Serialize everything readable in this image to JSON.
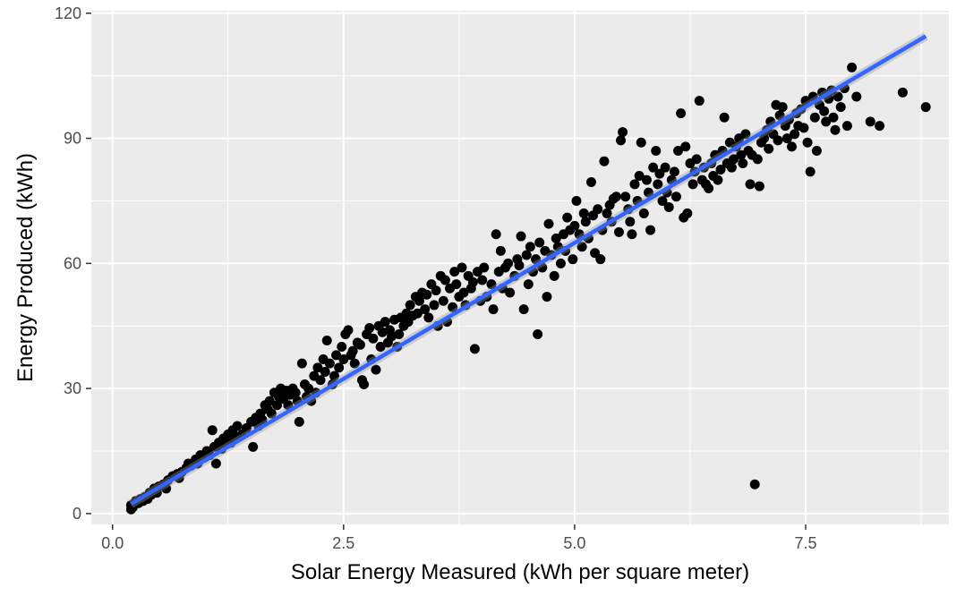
{
  "chart_data": {
    "type": "scatter",
    "title": "",
    "xlabel": "Solar Energy Measured (kWh per square meter)",
    "ylabel": "Energy Produced (kWh)",
    "xlim": [
      -0.23,
      9.05
    ],
    "ylim": [
      -2.6,
      120.6
    ],
    "x_ticks": [
      0.0,
      2.5,
      5.0,
      7.5
    ],
    "x_tick_labels": [
      "0.0",
      "2.5",
      "5.0",
      "7.5"
    ],
    "y_ticks": [
      0,
      30,
      60,
      90,
      120
    ],
    "y_tick_labels": [
      "0",
      "30",
      "60",
      "90",
      "120"
    ],
    "grid": true,
    "legend": "none",
    "colors": {
      "panel": "#ebebeb",
      "grid": "#ffffff",
      "point": "#000000",
      "fit_line": "#3366ff",
      "fit_band": "#999999"
    },
    "fit_line": {
      "x": [
        0.2,
        8.8
      ],
      "y": [
        2.3,
        114.5
      ]
    },
    "points": [
      [
        0.2,
        1.0
      ],
      [
        0.2,
        2.0
      ],
      [
        0.22,
        1.5
      ],
      [
        0.25,
        3.0
      ],
      [
        0.28,
        2.5
      ],
      [
        0.3,
        3.5
      ],
      [
        0.33,
        3.0
      ],
      [
        0.35,
        4.0
      ],
      [
        0.38,
        3.5
      ],
      [
        0.4,
        5.0
      ],
      [
        0.42,
        4.5
      ],
      [
        0.45,
        6.0
      ],
      [
        0.48,
        5.0
      ],
      [
        0.5,
        6.5
      ],
      [
        0.55,
        7.0
      ],
      [
        0.58,
        6.0
      ],
      [
        0.6,
        8.0
      ],
      [
        0.65,
        9.0
      ],
      [
        0.7,
        9.5
      ],
      [
        0.72,
        8.5
      ],
      [
        0.75,
        10.0
      ],
      [
        0.8,
        11.0
      ],
      [
        0.82,
        12.0
      ],
      [
        0.85,
        11.5
      ],
      [
        0.9,
        13.0
      ],
      [
        0.92,
        12.0
      ],
      [
        0.95,
        14.0
      ],
      [
        1.0,
        13.5
      ],
      [
        1.02,
        15.0
      ],
      [
        1.05,
        14.0
      ],
      [
        1.08,
        20.0
      ],
      [
        1.1,
        16.0
      ],
      [
        1.12,
        12.0
      ],
      [
        1.15,
        17.0
      ],
      [
        1.18,
        15.5
      ],
      [
        1.2,
        18.0
      ],
      [
        1.22,
        16.5
      ],
      [
        1.25,
        19.0
      ],
      [
        1.28,
        17.0
      ],
      [
        1.3,
        20.0
      ],
      [
        1.32,
        18.5
      ],
      [
        1.35,
        21.0
      ],
      [
        1.4,
        19.0
      ],
      [
        1.45,
        20.5
      ],
      [
        1.5,
        22.0
      ],
      [
        1.52,
        16.0
      ],
      [
        1.55,
        23.0
      ],
      [
        1.58,
        21.0
      ],
      [
        1.6,
        24.0
      ],
      [
        1.62,
        22.5
      ],
      [
        1.65,
        26.0
      ],
      [
        1.68,
        25.0
      ],
      [
        1.7,
        27.0
      ],
      [
        1.72,
        24.0
      ],
      [
        1.75,
        29.0
      ],
      [
        1.78,
        26.0
      ],
      [
        1.8,
        28.0
      ],
      [
        1.82,
        30.0
      ],
      [
        1.85,
        27.5
      ],
      [
        1.88,
        29.5
      ],
      [
        1.9,
        26.0
      ],
      [
        1.92,
        28.5
      ],
      [
        1.95,
        30.0
      ],
      [
        1.98,
        29.0
      ],
      [
        2.0,
        27.0
      ],
      [
        2.02,
        22.0
      ],
      [
        2.05,
        36.0
      ],
      [
        2.08,
        31.0
      ],
      [
        2.1,
        28.0
      ],
      [
        2.12,
        30.0
      ],
      [
        2.15,
        27.0
      ],
      [
        2.18,
        33.0
      ],
      [
        2.2,
        29.0
      ],
      [
        2.22,
        35.0
      ],
      [
        2.25,
        32.0
      ],
      [
        2.28,
        37.0
      ],
      [
        2.3,
        34.0
      ],
      [
        2.32,
        41.5
      ],
      [
        2.35,
        36.0
      ],
      [
        2.38,
        31.0
      ],
      [
        2.4,
        33.0
      ],
      [
        2.42,
        38.0
      ],
      [
        2.45,
        35.0
      ],
      [
        2.48,
        40.0
      ],
      [
        2.5,
        37.0
      ],
      [
        2.52,
        43.0
      ],
      [
        2.55,
        44.0
      ],
      [
        2.58,
        38.0
      ],
      [
        2.6,
        39.0
      ],
      [
        2.62,
        36.0
      ],
      [
        2.65,
        41.0
      ],
      [
        2.68,
        40.5
      ],
      [
        2.7,
        32.0
      ],
      [
        2.72,
        31.0
      ],
      [
        2.75,
        43.0
      ],
      [
        2.78,
        44.5
      ],
      [
        2.8,
        37.0
      ],
      [
        2.82,
        42.0
      ],
      [
        2.85,
        34.5
      ],
      [
        2.88,
        45.0
      ],
      [
        2.9,
        40.0
      ],
      [
        2.92,
        43.5
      ],
      [
        2.95,
        46.0
      ],
      [
        2.98,
        41.0
      ],
      [
        3.0,
        44.0
      ],
      [
        3.02,
        42.5
      ],
      [
        3.05,
        46.5
      ],
      [
        3.08,
        40.0
      ],
      [
        3.1,
        43.0
      ],
      [
        3.12,
        47.0
      ],
      [
        3.15,
        45.0
      ],
      [
        3.18,
        48.0
      ],
      [
        3.2,
        46.0
      ],
      [
        3.22,
        50.0
      ],
      [
        3.25,
        47.5
      ],
      [
        3.28,
        52.0
      ],
      [
        3.3,
        48.0
      ],
      [
        3.32,
        51.0
      ],
      [
        3.35,
        53.0
      ],
      [
        3.38,
        49.0
      ],
      [
        3.4,
        52.5
      ],
      [
        3.42,
        47.0
      ],
      [
        3.45,
        55.0
      ],
      [
        3.48,
        50.0
      ],
      [
        3.5,
        53.5
      ],
      [
        3.52,
        45.0
      ],
      [
        3.55,
        57.0
      ],
      [
        3.58,
        51.0
      ],
      [
        3.6,
        56.0
      ],
      [
        3.62,
        46.0
      ],
      [
        3.65,
        54.0
      ],
      [
        3.68,
        49.5
      ],
      [
        3.7,
        58.0
      ],
      [
        3.72,
        55.0
      ],
      [
        3.75,
        52.0
      ],
      [
        3.78,
        59.0
      ],
      [
        3.8,
        53.0
      ],
      [
        3.82,
        50.0
      ],
      [
        3.85,
        57.0
      ],
      [
        3.88,
        54.0
      ],
      [
        3.9,
        55.5
      ],
      [
        3.92,
        39.5
      ],
      [
        3.95,
        58.0
      ],
      [
        3.98,
        51.0
      ],
      [
        4.0,
        56.0
      ],
      [
        4.02,
        59.0
      ],
      [
        4.05,
        52.0
      ],
      [
        4.1,
        55.0
      ],
      [
        4.12,
        49.0
      ],
      [
        4.15,
        67.0
      ],
      [
        4.18,
        58.0
      ],
      [
        4.2,
        63.0
      ],
      [
        4.22,
        54.0
      ],
      [
        4.25,
        59.0
      ],
      [
        4.28,
        60.0
      ],
      [
        4.3,
        53.0
      ],
      [
        4.35,
        57.0
      ],
      [
        4.38,
        61.0
      ],
      [
        4.4,
        59.5
      ],
      [
        4.42,
        66.5
      ],
      [
        4.45,
        49.0
      ],
      [
        4.48,
        62.0
      ],
      [
        4.5,
        55.0
      ],
      [
        4.52,
        64.0
      ],
      [
        4.55,
        58.0
      ],
      [
        4.58,
        61.0
      ],
      [
        4.6,
        43.0
      ],
      [
        4.62,
        65.0
      ],
      [
        4.65,
        59.0
      ],
      [
        4.68,
        63.0
      ],
      [
        4.7,
        52.0
      ],
      [
        4.72,
        69.5
      ],
      [
        4.75,
        62.0
      ],
      [
        4.78,
        57.0
      ],
      [
        4.8,
        66.0
      ],
      [
        4.82,
        64.0
      ],
      [
        4.85,
        60.0
      ],
      [
        4.88,
        67.0
      ],
      [
        4.9,
        63.0
      ],
      [
        4.92,
        71.0
      ],
      [
        4.95,
        68.0
      ],
      [
        4.98,
        61.0
      ],
      [
        5.0,
        69.0
      ],
      [
        5.02,
        75.0
      ],
      [
        5.05,
        67.0
      ],
      [
        5.08,
        64.0
      ],
      [
        5.1,
        72.0
      ],
      [
        5.12,
        70.0
      ],
      [
        5.15,
        66.0
      ],
      [
        5.18,
        79.5
      ],
      [
        5.2,
        71.5
      ],
      [
        5.22,
        62.5
      ],
      [
        5.25,
        73.0
      ],
      [
        5.28,
        61.0
      ],
      [
        5.3,
        68.0
      ],
      [
        5.32,
        84.5
      ],
      [
        5.35,
        72.0
      ],
      [
        5.38,
        74.0
      ],
      [
        5.4,
        70.0
      ],
      [
        5.42,
        75.5
      ],
      [
        5.45,
        76.0
      ],
      [
        5.48,
        67.5
      ],
      [
        5.5,
        89.5
      ],
      [
        5.52,
        91.5
      ],
      [
        5.55,
        76.0
      ],
      [
        5.58,
        73.0
      ],
      [
        5.6,
        70.0
      ],
      [
        5.62,
        67.0
      ],
      [
        5.65,
        79.0
      ],
      [
        5.68,
        75.0
      ],
      [
        5.7,
        81.0
      ],
      [
        5.72,
        89.0
      ],
      [
        5.75,
        72.0
      ],
      [
        5.78,
        80.0
      ],
      [
        5.8,
        77.0
      ],
      [
        5.82,
        68.0
      ],
      [
        5.85,
        83.0
      ],
      [
        5.88,
        87.0
      ],
      [
        5.9,
        79.0
      ],
      [
        5.92,
        81.5
      ],
      [
        5.95,
        75.0
      ],
      [
        5.98,
        83.0
      ],
      [
        6.0,
        77.0
      ],
      [
        6.02,
        73.5
      ],
      [
        6.05,
        80.0
      ],
      [
        6.08,
        82.0
      ],
      [
        6.1,
        76.0
      ],
      [
        6.12,
        87.0
      ],
      [
        6.15,
        96.0
      ],
      [
        6.18,
        71.0
      ],
      [
        6.2,
        88.0
      ],
      [
        6.22,
        72.0
      ],
      [
        6.25,
        84.0
      ],
      [
        6.28,
        79.0
      ],
      [
        6.3,
        82.0
      ],
      [
        6.32,
        85.0
      ],
      [
        6.35,
        99.0
      ],
      [
        6.38,
        80.0
      ],
      [
        6.4,
        83.0
      ],
      [
        6.42,
        79.0
      ],
      [
        6.45,
        78.0
      ],
      [
        6.48,
        84.0
      ],
      [
        6.5,
        81.0
      ],
      [
        6.52,
        86.0
      ],
      [
        6.55,
        80.0
      ],
      [
        6.58,
        82.5
      ],
      [
        6.6,
        87.0
      ],
      [
        6.62,
        95.0
      ],
      [
        6.65,
        84.0
      ],
      [
        6.68,
        89.0
      ],
      [
        6.7,
        83.0
      ],
      [
        6.72,
        85.0
      ],
      [
        6.75,
        88.0
      ],
      [
        6.78,
        90.0
      ],
      [
        6.8,
        86.0
      ],
      [
        6.82,
        84.0
      ],
      [
        6.85,
        91.0
      ],
      [
        6.88,
        87.0
      ],
      [
        6.9,
        79.0
      ],
      [
        6.92,
        86.0
      ],
      [
        6.95,
        7.0
      ],
      [
        6.98,
        85.0
      ],
      [
        7.0,
        78.5
      ],
      [
        7.02,
        89.0
      ],
      [
        7.05,
        90.0
      ],
      [
        7.08,
        92.0
      ],
      [
        7.1,
        87.5
      ],
      [
        7.12,
        94.0
      ],
      [
        7.15,
        91.0
      ],
      [
        7.18,
        98.0
      ],
      [
        7.2,
        89.5
      ],
      [
        7.22,
        95.5
      ],
      [
        7.25,
        97.5
      ],
      [
        7.28,
        93.0
      ],
      [
        7.3,
        90.0
      ],
      [
        7.32,
        94.5
      ],
      [
        7.35,
        88.0
      ],
      [
        7.38,
        91.0
      ],
      [
        7.4,
        96.0
      ],
      [
        7.42,
        93.0
      ],
      [
        7.45,
        97.0
      ],
      [
        7.48,
        92.5
      ],
      [
        7.5,
        99.0
      ],
      [
        7.52,
        89.0
      ],
      [
        7.55,
        82.0
      ],
      [
        7.58,
        100.0
      ],
      [
        7.6,
        95.0
      ],
      [
        7.62,
        87.0
      ],
      [
        7.65,
        98.0
      ],
      [
        7.68,
        101.0
      ],
      [
        7.7,
        96.5
      ],
      [
        7.72,
        94.0
      ],
      [
        7.75,
        99.5
      ],
      [
        7.78,
        101.5
      ],
      [
        7.8,
        95.0
      ],
      [
        7.82,
        92.0
      ],
      [
        7.85,
        100.0
      ],
      [
        7.88,
        97.5
      ],
      [
        7.92,
        102.0
      ],
      [
        7.95,
        93.0
      ],
      [
        8.0,
        107.0
      ],
      [
        8.05,
        100.0
      ],
      [
        8.2,
        94.0
      ],
      [
        8.3,
        93.0
      ],
      [
        8.55,
        101.0
      ],
      [
        8.8,
        97.5
      ]
    ]
  }
}
